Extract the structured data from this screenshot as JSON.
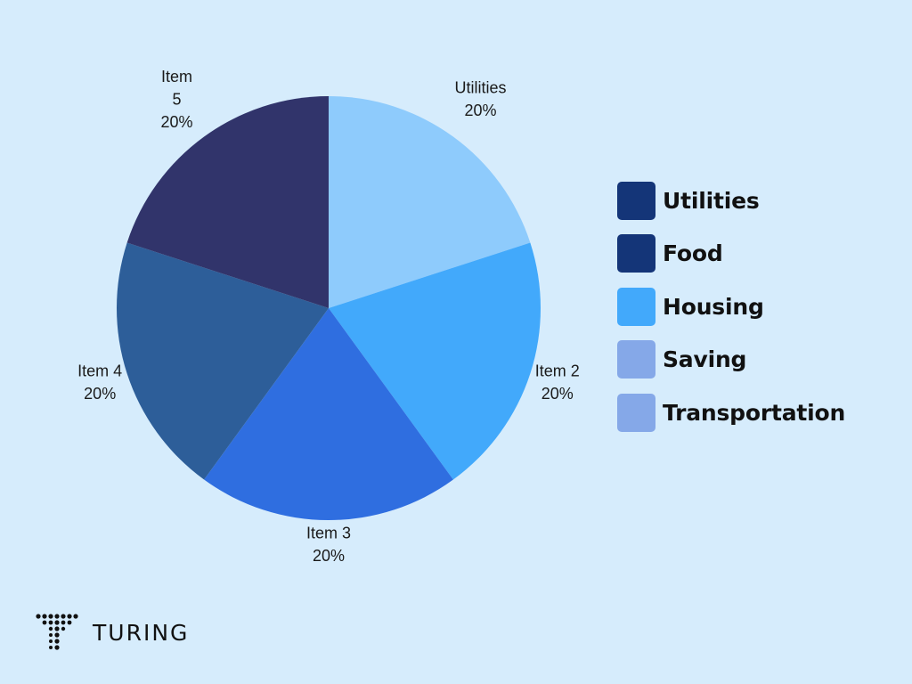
{
  "chart_data": {
    "type": "pie",
    "slices": [
      {
        "label": "Utilities",
        "value": 20,
        "display": "20%",
        "color": "#8ecbfc"
      },
      {
        "label": "Item 2",
        "value": 20,
        "display": "20%",
        "color": "#42a9fb"
      },
      {
        "label": "Item 3",
        "value": 20,
        "display": "20%",
        "color": "#2f6ee0"
      },
      {
        "label": "Item 4",
        "value": 20,
        "display": "20%",
        "color": "#2d5e99"
      },
      {
        "label": "Item 5",
        "value": 20,
        "display": "20%",
        "color": "#31346b"
      }
    ],
    "legend": [
      {
        "label": "Utilities",
        "color": "#143578"
      },
      {
        "label": "Food",
        "color": "#143578"
      },
      {
        "label": "Housing",
        "color": "#42a9fb"
      },
      {
        "label": "Saving",
        "color": "#85a8e8"
      },
      {
        "label": "Transportation",
        "color": "#85a8e8"
      }
    ],
    "legend_position": "right"
  },
  "brand": {
    "name": "TURING",
    "logo_icon": "turing-dot-t-icon"
  }
}
